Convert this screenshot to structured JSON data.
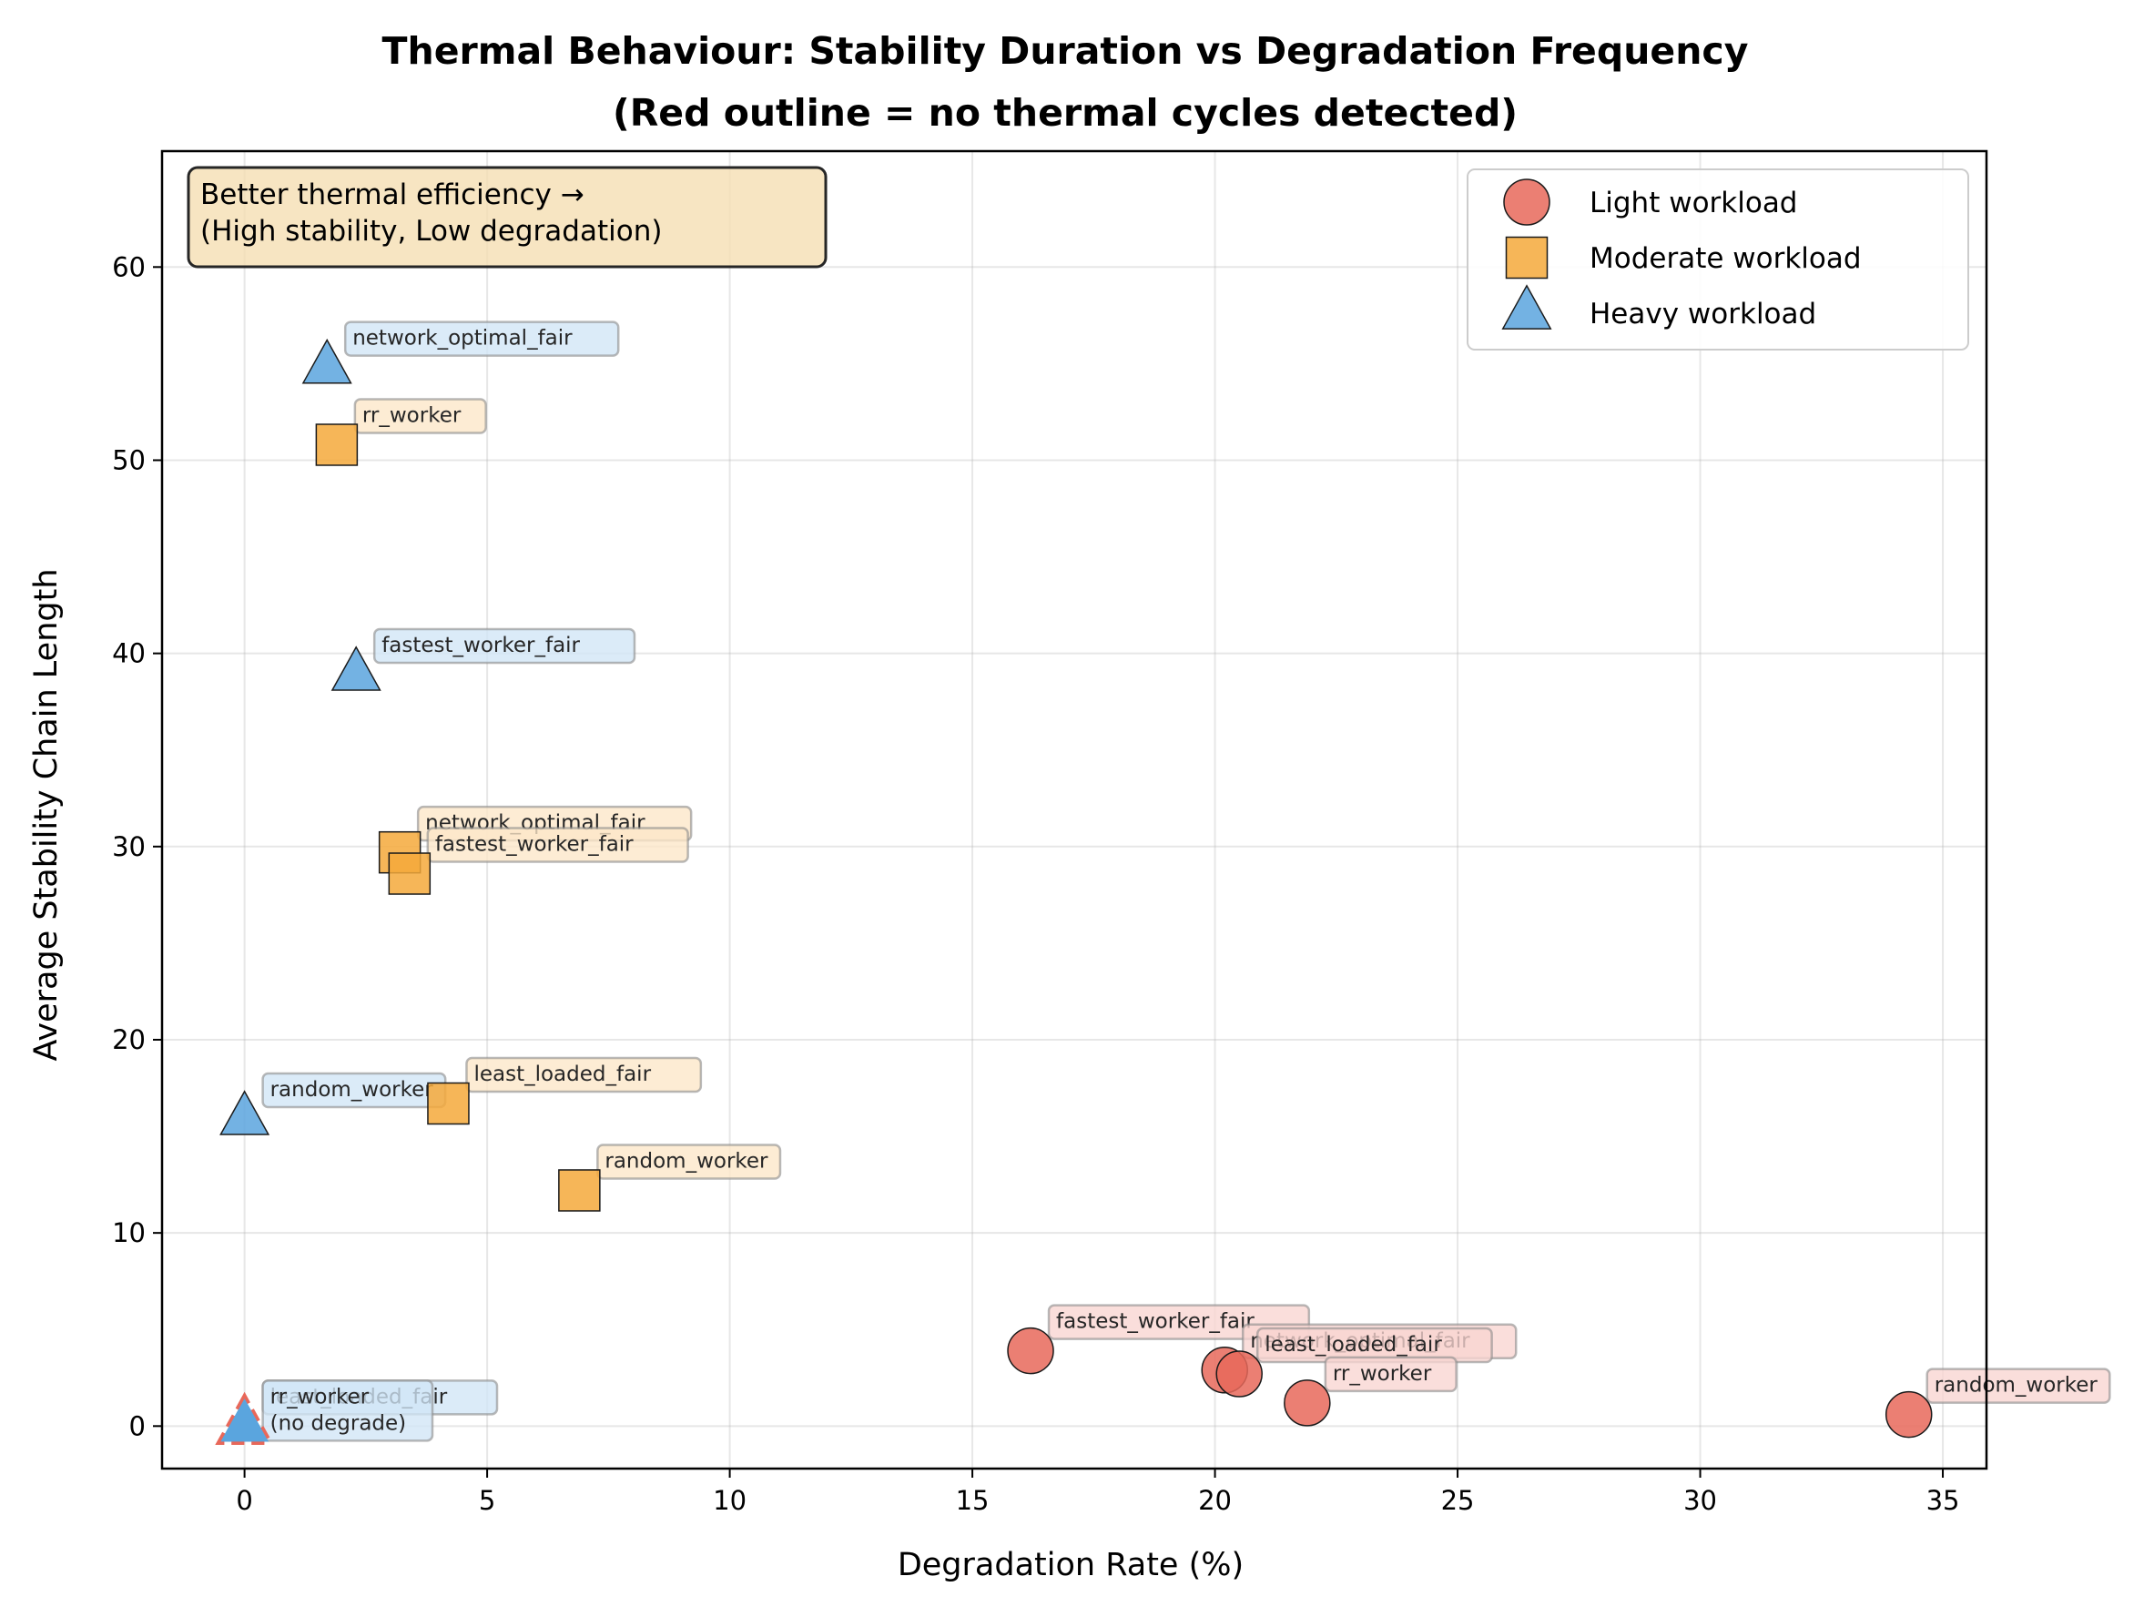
{
  "chart_data": {
    "type": "scatter",
    "title": "Thermal Behaviour: Stability Duration vs Degradation Frequency",
    "subtitle": "(Red outline = no thermal cycles detected)",
    "xlabel": "Degradation Rate (%)",
    "ylabel": "Average Stability Chain Length",
    "xlim": [
      -1.7,
      35.9
    ],
    "ylim": [
      -2.2,
      66
    ],
    "xticks": [
      0,
      5,
      10,
      15,
      20,
      25,
      30,
      35
    ],
    "yticks": [
      0,
      10,
      20,
      30,
      40,
      50,
      60
    ],
    "xtick_labels": [
      "0",
      "5",
      "10",
      "15",
      "20",
      "25",
      "30",
      "35"
    ],
    "ytick_labels": [
      "0",
      "10",
      "20",
      "30",
      "40",
      "50",
      "60"
    ],
    "grid": true,
    "legend_position": "top-right",
    "note": {
      "lines": [
        "Better thermal efficiency →",
        "(High stability, Low degradation)"
      ],
      "position": "top-left"
    },
    "series": [
      {
        "name": "Light workload",
        "marker": "circle",
        "color": "#E8685A",
        "points": [
          {
            "x": 16.2,
            "y": 3.9,
            "label": "fastest_worker_fair"
          },
          {
            "x": 20.2,
            "y": 2.9,
            "label": "network_optimal_fair"
          },
          {
            "x": 20.5,
            "y": 2.7,
            "label": "least_loaded_fair"
          },
          {
            "x": 21.9,
            "y": 1.2,
            "label": "rr_worker"
          },
          {
            "x": 34.3,
            "y": 0.6,
            "label": "random_worker"
          }
        ]
      },
      {
        "name": "Moderate workload",
        "marker": "square",
        "color": "#F5A93B",
        "points": [
          {
            "x": 1.9,
            "y": 50.8,
            "label": "rr_worker"
          },
          {
            "x": 3.2,
            "y": 29.7,
            "label": "network_optimal_fair"
          },
          {
            "x": 3.4,
            "y": 28.6,
            "label": "fastest_worker_fair"
          },
          {
            "x": 4.2,
            "y": 16.7,
            "label": "least_loaded_fair"
          },
          {
            "x": 6.9,
            "y": 12.2,
            "label": "random_worker"
          }
        ]
      },
      {
        "name": "Heavy workload",
        "marker": "triangle",
        "color": "#5AA5DE",
        "points": [
          {
            "x": 1.7,
            "y": 54.8,
            "label": "network_optimal_fair"
          },
          {
            "x": 2.3,
            "y": 38.9,
            "label": "fastest_worker_fair"
          },
          {
            "x": 0.0,
            "y": 15.9,
            "label": "random_worker"
          },
          {
            "x": 0.0,
            "y": 0.0,
            "label": "least_loaded_fair",
            "no_cycles": true
          },
          {
            "x": 0.0,
            "y": 0.0,
            "label": "rr_worker",
            "no_cycles": true,
            "extra": "(no degrade)"
          }
        ]
      }
    ],
    "no_cycles_outline_color": "#E8685A"
  }
}
